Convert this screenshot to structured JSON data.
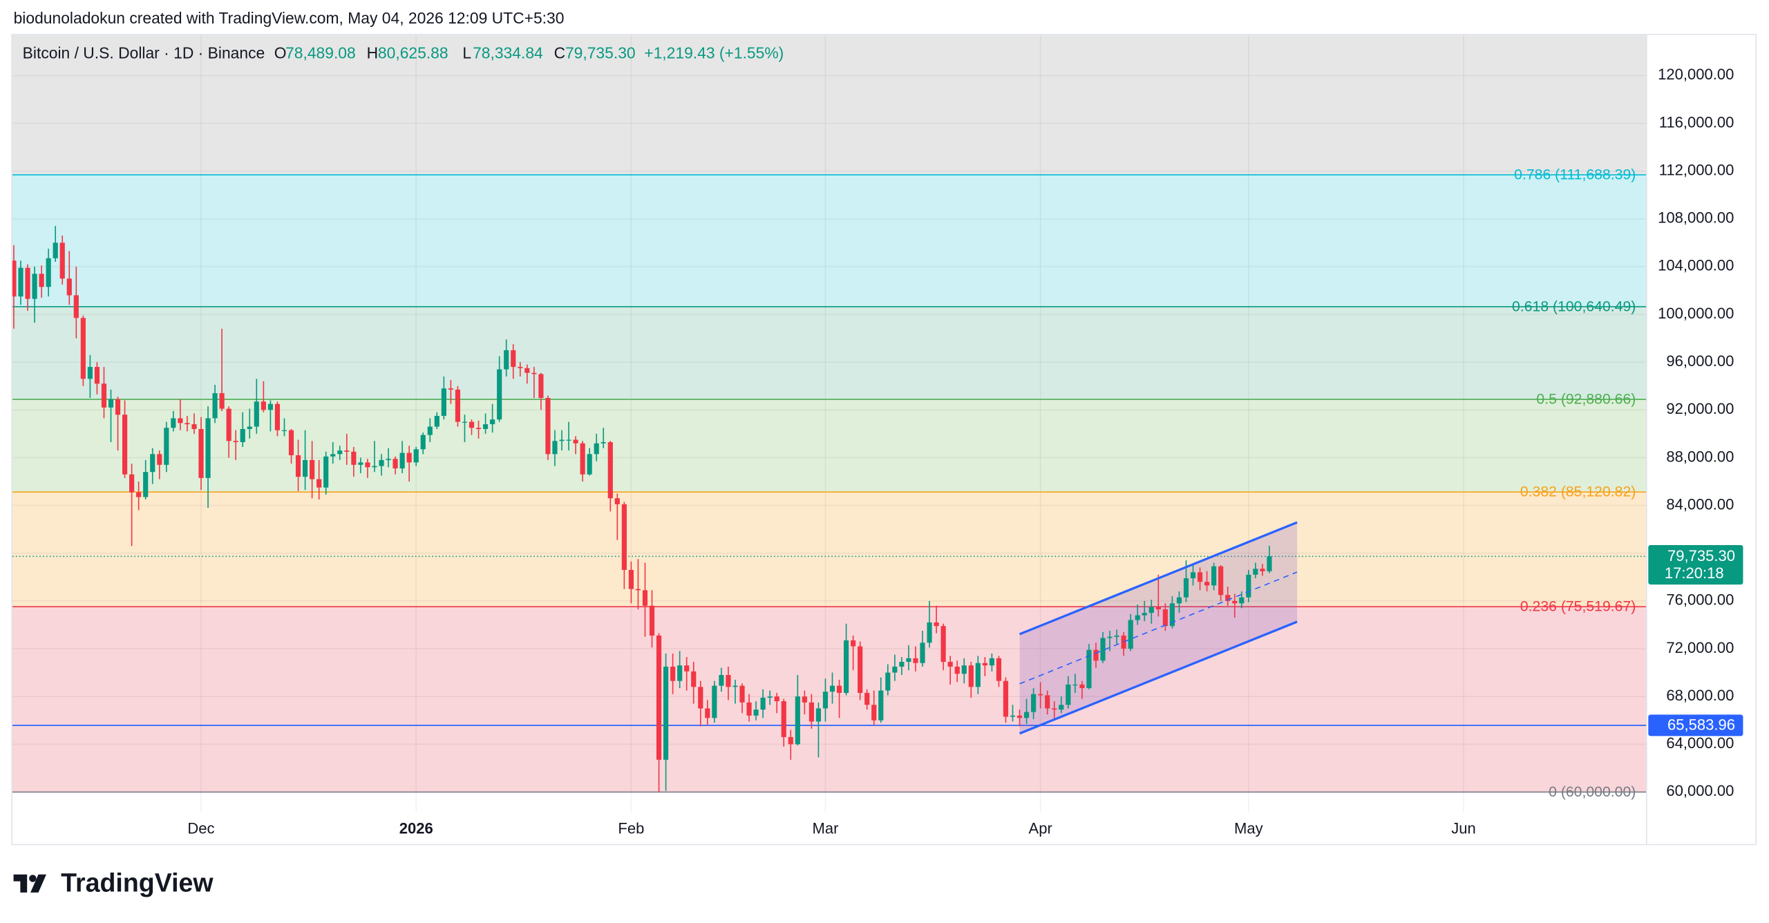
{
  "credit": "biodunoladokun created with TradingView.com, May 04, 2026 12:09 UTC+5:30",
  "chart_data": {
    "type": "candlestick",
    "title": "Bitcoin / U.S. Dollar · 1D · Binance",
    "quote": [
      {
        "key": "O",
        "label": "78,489.08"
      },
      {
        "key": "H",
        "label": "80,625.88"
      },
      {
        "key": "L",
        "label": "78,334.84"
      },
      {
        "key": "C",
        "label": "79,735.30"
      }
    ],
    "change_label": "+1,219.43 (+1.55%)",
    "colors": {
      "up": "#089981",
      "down": "#f23645"
    },
    "candles": {
      "open": [
        104500,
        101500,
        103900,
        101300,
        103400,
        102300,
        104700,
        106000,
        103000,
        101600,
        99700,
        94600,
        95600,
        94200,
        92200,
        92900,
        91600,
        86600,
        85100,
        84700,
        86800,
        88300,
        87400,
        90500,
        91300,
        90900,
        90800,
        90400,
        86300,
        91300,
        93400,
        92100,
        89400,
        89300,
        90400,
        90600,
        92700,
        92000,
        92500,
        90300,
        90300,
        88200,
        86400,
        87800,
        86200,
        85500,
        88100,
        88300,
        88600,
        88500,
        87400,
        87600,
        87200,
        87300,
        87800,
        87900,
        87100,
        88400,
        87600,
        88700,
        89900,
        90600,
        91500,
        93800,
        93700,
        91000,
        91000,
        90500,
        90400,
        90800,
        91200,
        95400,
        97000,
        95600,
        95500,
        95100,
        95000,
        93000,
        88300,
        89400,
        89500,
        89500,
        89200,
        86600,
        88300,
        89200,
        89300,
        84600,
        84100,
        78600,
        77000,
        76900,
        75600,
        73100,
        62700,
        70500,
        69300,
        70600,
        70100,
        68800,
        67000,
        66200,
        68900,
        69800,
        68800,
        68900,
        67500,
        66400,
        66900,
        67900,
        68000,
        67600,
        64600,
        64000,
        68000,
        67500,
        65900,
        67000,
        68400,
        68900,
        68300,
        72700,
        72200,
        68300,
        67300,
        66000,
        68500,
        70000,
        70500,
        70900,
        71200,
        70800,
        72500,
        74200,
        73900,
        70900,
        70500,
        69900,
        70600,
        68800,
        70800,
        70600,
        71200,
        69300,
        66300,
        66400,
        66200,
        66700,
        68200,
        68100,
        67000,
        66900,
        67300,
        69000,
        69000,
        68700,
        71900,
        71000,
        72900,
        73000,
        73100,
        72000,
        74400,
        74800,
        75000,
        75500,
        75300,
        73900,
        75800,
        76300,
        77900,
        78400,
        77600,
        77300,
        78900,
        76500,
        76000,
        75800,
        76300,
        78200,
        78700,
        78489.08
      ],
      "high": [
        105800,
        104500,
        104200,
        104000,
        104100,
        105500,
        107400,
        106600,
        105300,
        104000,
        99900,
        96600,
        96000,
        95600,
        93700,
        93100,
        92800,
        87500,
        86000,
        87800,
        88800,
        88600,
        91000,
        91900,
        92900,
        91500,
        91700,
        91400,
        92300,
        94100,
        98800,
        92300,
        90300,
        91800,
        92100,
        94600,
        94400,
        92800,
        92700,
        91300,
        90400,
        89500,
        90300,
        89400,
        87800,
        88500,
        89300,
        89000,
        90000,
        88900,
        88000,
        87900,
        89400,
        88300,
        88800,
        88100,
        89400,
        89000,
        88900,
        90100,
        91300,
        91800,
        94800,
        94500,
        94000,
        91600,
        91200,
        91100,
        91700,
        92500,
        96500,
        97900,
        97500,
        96000,
        95800,
        95600,
        95100,
        93200,
        90300,
        90300,
        91000,
        89800,
        89400,
        88800,
        90000,
        90500,
        89400,
        85000,
        84300,
        79300,
        79500,
        79200,
        76900,
        73300,
        71600,
        71600,
        71800,
        71300,
        70900,
        69300,
        67700,
        69300,
        70400,
        70500,
        69400,
        69100,
        68200,
        67600,
        68600,
        68500,
        68300,
        67800,
        65200,
        69800,
        68500,
        68200,
        67500,
        69500,
        70000,
        69400,
        74100,
        73100,
        72600,
        68600,
        68500,
        69600,
        70700,
        71500,
        71300,
        72300,
        72200,
        73500,
        76000,
        75600,
        74100,
        71400,
        71000,
        71200,
        70900,
        71400,
        71300,
        71600,
        71400,
        69600,
        67300,
        66900,
        67800,
        68700,
        69200,
        68500,
        67600,
        68000,
        69700,
        69900,
        69300,
        72400,
        72500,
        73400,
        73500,
        73600,
        73400,
        74900,
        75700,
        76000,
        76100,
        78200,
        75800,
        76400,
        76800,
        79400,
        79100,
        78800,
        78500,
        79200,
        79000,
        77200,
        76600,
        76800,
        78600,
        79200,
        79100,
        80625.88
      ],
      "low": [
        98800,
        100800,
        100300,
        99300,
        101400,
        101500,
        104400,
        102500,
        100800,
        98000,
        94000,
        93000,
        93300,
        91300,
        89300,
        88600,
        86300,
        80600,
        83600,
        84500,
        85800,
        86200,
        86800,
        90200,
        90300,
        90200,
        90000,
        85300,
        83800,
        90900,
        91900,
        88000,
        87800,
        88900,
        89600,
        90000,
        91800,
        90200,
        89800,
        89800,
        87500,
        85200,
        85300,
        84600,
        84500,
        84900,
        87500,
        87800,
        87400,
        86400,
        86700,
        86300,
        86800,
        86500,
        87200,
        86600,
        86700,
        86000,
        87300,
        88300,
        89300,
        90400,
        91200,
        92500,
        90600,
        89300,
        89900,
        89600,
        90000,
        90100,
        91000,
        94800,
        94600,
        94800,
        94200,
        93000,
        92000,
        87800,
        87300,
        88600,
        88600,
        88300,
        86000,
        86500,
        87700,
        88800,
        83500,
        81100,
        77000,
        75800,
        75300,
        73000,
        72100,
        60000,
        60100,
        68200,
        68700,
        68500,
        67400,
        65500,
        65600,
        65800,
        68400,
        67700,
        67400,
        66600,
        65900,
        66000,
        66200,
        67300,
        66600,
        63800,
        62700,
        63900,
        66500,
        65300,
        62900,
        65900,
        67400,
        66200,
        68100,
        70200,
        67700,
        66900,
        65600,
        65800,
        68100,
        69300,
        69800,
        70200,
        70100,
        70500,
        72100,
        73300,
        70200,
        69000,
        69200,
        69100,
        67900,
        68200,
        69700,
        70100,
        68800,
        65800,
        65900,
        65500,
        65700,
        66100,
        67000,
        66500,
        66000,
        66600,
        67000,
        68300,
        67800,
        68600,
        70400,
        70800,
        71800,
        72400,
        71400,
        71800,
        74000,
        74300,
        74100,
        74700,
        73500,
        73700,
        75000,
        75900,
        77300,
        76900,
        76800,
        76900,
        76000,
        75600,
        74600,
        75400,
        75900,
        77900,
        78100,
        78334.84
      ],
      "close": [
        101500,
        103900,
        101300,
        103400,
        102300,
        104700,
        106000,
        103000,
        101600,
        99700,
        94600,
        95600,
        94200,
        92200,
        92900,
        91600,
        86600,
        85100,
        84700,
        86800,
        88300,
        87400,
        90500,
        91300,
        90900,
        90800,
        90400,
        86300,
        91300,
        93400,
        92100,
        89400,
        89300,
        90400,
        90600,
        92700,
        92000,
        92500,
        90300,
        90300,
        88200,
        86400,
        87800,
        86200,
        85500,
        88100,
        88300,
        88600,
        88500,
        87400,
        87600,
        87200,
        87300,
        87800,
        87900,
        87100,
        88400,
        87600,
        88700,
        89900,
        90600,
        91500,
        93800,
        93700,
        91000,
        91000,
        90500,
        90400,
        90800,
        91200,
        95400,
        97000,
        95600,
        95500,
        95100,
        95000,
        93000,
        88300,
        89400,
        89500,
        89500,
        89200,
        86600,
        88300,
        89200,
        89300,
        84600,
        84100,
        78600,
        77000,
        76900,
        75600,
        73100,
        62700,
        70500,
        69300,
        70600,
        70100,
        68800,
        67000,
        66200,
        68900,
        69800,
        68800,
        68900,
        67500,
        66400,
        66900,
        67900,
        68000,
        67600,
        64600,
        64000,
        68000,
        67500,
        65900,
        67000,
        68400,
        68900,
        68300,
        72700,
        72200,
        68300,
        67300,
        66000,
        68500,
        70000,
        70500,
        70900,
        71200,
        70800,
        72500,
        74200,
        73900,
        70900,
        70500,
        69900,
        70600,
        68800,
        70800,
        70600,
        71200,
        69300,
        66300,
        66400,
        66200,
        66700,
        68200,
        68100,
        67000,
        66900,
        67300,
        69000,
        69000,
        68700,
        71900,
        71000,
        72900,
        73000,
        73100,
        72000,
        74400,
        74800,
        75000,
        75500,
        75300,
        73900,
        75800,
        76300,
        77900,
        78400,
        77600,
        77300,
        78900,
        76500,
        76000,
        75800,
        76300,
        78200,
        78700,
        78489.08,
        79735.3
      ]
    },
    "xlim": [
      -0.2,
      235.3
    ],
    "xticks": [
      {
        "value": 27,
        "label": "Dec"
      },
      {
        "value": 58,
        "label": "2026"
      },
      {
        "value": 89,
        "label": "Feb"
      },
      {
        "value": 117,
        "label": "Mar"
      },
      {
        "value": 148,
        "label": "Apr"
      },
      {
        "value": 178,
        "label": "May"
      },
      {
        "value": 209,
        "label": "Jun"
      }
    ],
    "ylim": [
      58290,
      123400
    ],
    "yticks": [
      {
        "value": 60000,
        "label": "60,000.00"
      },
      {
        "value": 64000,
        "label": "64,000.00"
      },
      {
        "value": 68000,
        "label": "68,000.00"
      },
      {
        "value": 72000,
        "label": "72,000.00"
      },
      {
        "value": 76000,
        "label": "76,000.00"
      },
      {
        "value": 80000,
        "label": "80,000.00"
      },
      {
        "value": 84000,
        "label": "84,000.00"
      },
      {
        "value": 88000,
        "label": "88,000.00"
      },
      {
        "value": 92000,
        "label": "92,000.00"
      },
      {
        "value": 96000,
        "label": "96,000.00"
      },
      {
        "value": 100000,
        "label": "100,000.00"
      },
      {
        "value": 104000,
        "label": "104,000.00"
      },
      {
        "value": 108000,
        "label": "108,000.00"
      },
      {
        "value": 112000,
        "label": "112,000.00"
      },
      {
        "value": 116000,
        "label": "116,000.00"
      },
      {
        "value": 120000,
        "label": "120,000.00"
      }
    ],
    "grid": true,
    "fib": [
      {
        "value": 60000,
        "label": "0 (60,000.00)",
        "color": "#787b86",
        "fill": "#f9d6d9"
      },
      {
        "value": 75519.67,
        "label": "0.236 (75,519.67)",
        "color": "#f23645",
        "fill": "#fde9cc"
      },
      {
        "value": 85120.82,
        "label": "0.382 (85,120.82)",
        "color": "#f7a21b",
        "fill": "#dfefd9"
      },
      {
        "value": 92880.66,
        "label": "0.5 (92,880.66)",
        "color": "#4caf50",
        "fill": "#d6ebe3"
      },
      {
        "value": 100640.49,
        "label": "0.618 (100,640.49)",
        "color": "#089981",
        "fill": "#cdf1f4"
      },
      {
        "value": 111688.39,
        "label": "0.786 (111,688.39)",
        "color": "#00bcd4",
        "fill": "#e6e6e6"
      }
    ],
    "price_line": {
      "value": 79735.3,
      "label": "79,735.30",
      "countdown": "17:20:18",
      "color": "#089981"
    },
    "hline": {
      "value": 65583.96,
      "label": "65,583.96",
      "color": "#2962ff"
    },
    "channel": {
      "x": [
        145,
        185
      ],
      "lower": [
        64900,
        74260
      ],
      "upper": [
        73220,
        82580
      ],
      "color": "#2962ff",
      "fill": "#7e57c2"
    }
  },
  "footer": {
    "logo": "TradingView"
  }
}
